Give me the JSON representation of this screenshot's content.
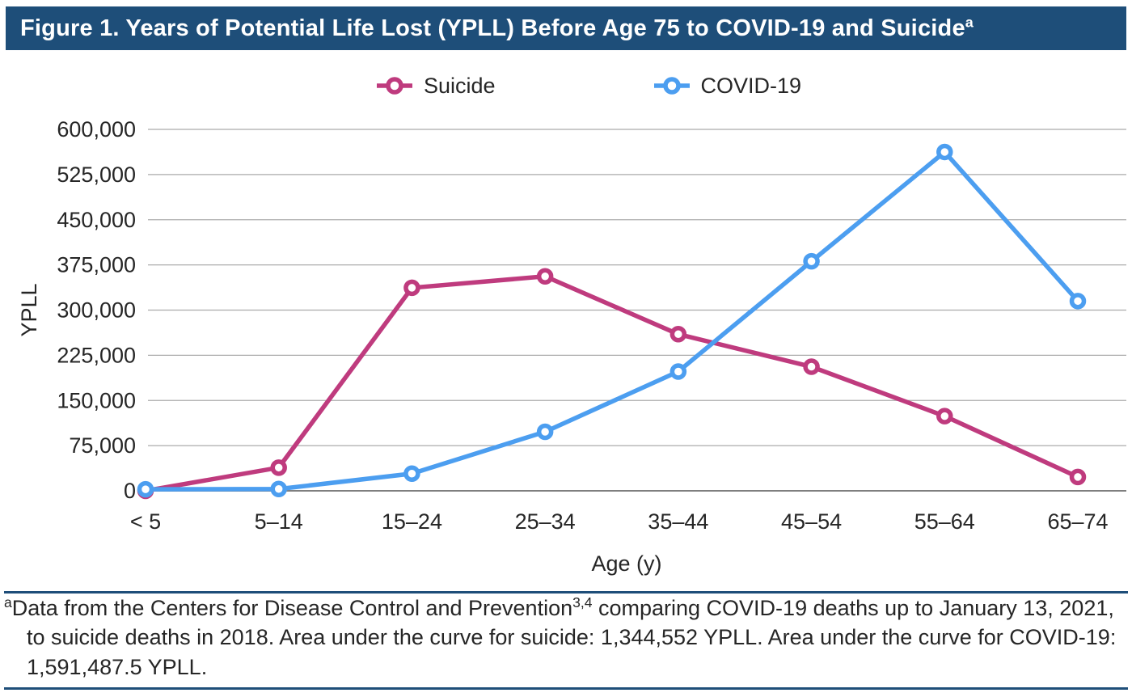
{
  "figure": {
    "title": "Figure 1. Years of Potential Life Lost (YPLL) Before Age 75 to COVID-19 and Suicide",
    "title_superscript": "a"
  },
  "legend": [
    {
      "label": "Suicide",
      "color": "#BF3B7E",
      "marker": "open-circle-on-line"
    },
    {
      "label": "COVID-19",
      "color": "#4C9EF0",
      "marker": "open-circle-on-line"
    }
  ],
  "colors": {
    "header_bg": "#1E4E79",
    "header_text": "#FFFFFF",
    "suicide": "#BF3B7E",
    "covid": "#4C9EF0",
    "gridline": "#ABABAB",
    "axis_line": "#7F7F7F",
    "text": "#262626",
    "rule": "#1E4E79"
  },
  "chart_data": {
    "type": "line",
    "categories": [
      "< 5",
      "5–14",
      "15–24",
      "25–34",
      "35–44",
      "45–54",
      "55–64",
      "65–74"
    ],
    "series": [
      {
        "name": "Suicide",
        "color": "#BF3B7E",
        "values": [
          0,
          38500,
          337000,
          356000,
          260000,
          206000,
          124000,
          23000
        ]
      },
      {
        "name": "COVID-19",
        "color": "#4C9EF0",
        "values": [
          2500,
          3000,
          28500,
          98000,
          198000,
          381000,
          562500,
          315000
        ]
      }
    ],
    "xlabel": "Age (y)",
    "ylabel": "YPLL",
    "ylim": [
      0,
      600000
    ],
    "ytick_interval": 75000,
    "ytick_labels": [
      "0",
      "75,000",
      "150,000",
      "225,000",
      "300,000",
      "375,000",
      "450,000",
      "525,000",
      "600,000"
    ],
    "grid": "horizontal-only",
    "legend_position": "top-center",
    "marker_style": "open-circle"
  },
  "footnote": {
    "superscript": "a",
    "text_before_ref": "Data from the Centers for Disease Control and Prevention",
    "ref_superscript": "3,4",
    "text_after_ref": " comparing COVID-19 deaths up to January 13, 2021, to suicide deaths in 2018. Area under the curve for suicide: 1,344,552 YPLL. Area under the curve for COVID-19: 1,591,487.5 YPLL."
  }
}
